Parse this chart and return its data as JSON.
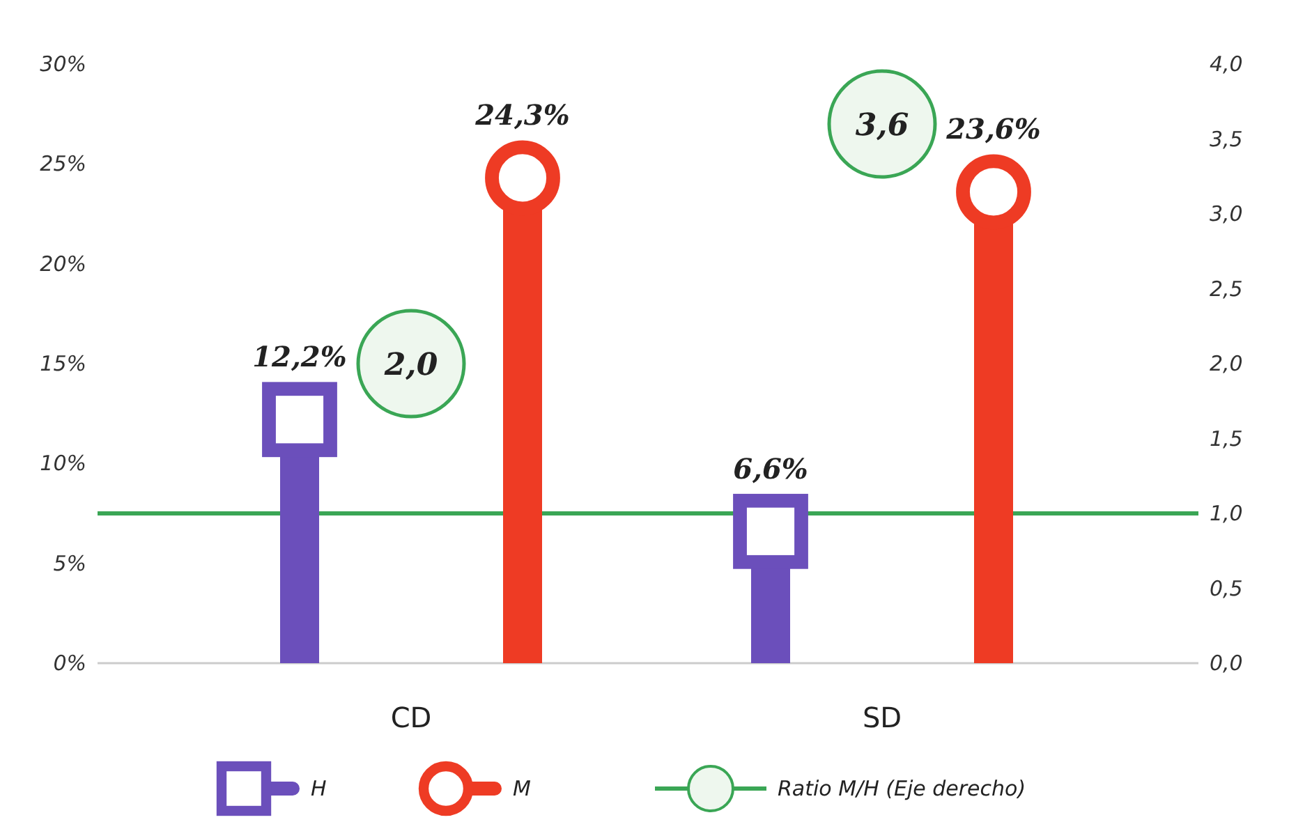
{
  "chart_data": {
    "type": "lollipop",
    "categories": [
      "CD",
      "SD"
    ],
    "series": [
      {
        "name": "H",
        "color": "#6b4fbb",
        "marker": "square",
        "values": [
          12.2,
          6.6
        ],
        "value_labels": [
          "12,2%",
          "6,6%"
        ]
      },
      {
        "name": "M",
        "color": "#ee3b24",
        "marker": "circle",
        "values": [
          24.3,
          23.6
        ],
        "value_labels": [
          "24,3%",
          "23,6%"
        ]
      },
      {
        "name": "Ratio M/H (Eje derecho)",
        "type": "scatter",
        "axis": "y2",
        "color": "#3aa655",
        "marker": "circle",
        "x": [
          "CD",
          "SD"
        ],
        "values": [
          2.0,
          3.6
        ],
        "value_labels": [
          "2,0",
          "3,6"
        ]
      }
    ],
    "ylim": [
      0,
      30
    ],
    "yticks": [
      {
        "value": 0,
        "label": "0%"
      },
      {
        "value": 5,
        "label": "5%"
      },
      {
        "value": 10,
        "label": "10%"
      },
      {
        "value": 15,
        "label": "15%"
      },
      {
        "value": 20,
        "label": "20%"
      },
      {
        "value": 25,
        "label": "25%"
      },
      {
        "value": 30,
        "label": "30%"
      }
    ],
    "y2lim": [
      0,
      4
    ],
    "y2ticks": [
      {
        "value": 0,
        "label": "0,0"
      },
      {
        "value": 0.5,
        "label": "0,5"
      },
      {
        "value": 1,
        "label": "1,0"
      },
      {
        "value": 1.5,
        "label": "1,5"
      },
      {
        "value": 2,
        "label": "2,0"
      },
      {
        "value": 2.5,
        "label": "2,5"
      },
      {
        "value": 3,
        "label": "3,0"
      },
      {
        "value": 3.5,
        "label": "3,5"
      },
      {
        "value": 4,
        "label": "4,0"
      }
    ],
    "ref_lines": [
      {
        "axis": "y2",
        "value": 1,
        "color": "#3aa655"
      }
    ],
    "grid": false,
    "legend": "bottom"
  }
}
